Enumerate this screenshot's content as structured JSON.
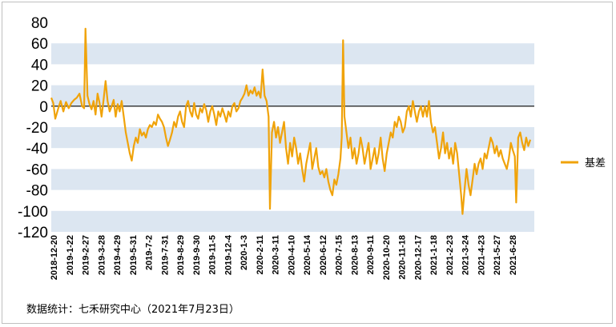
{
  "chart_data": {
    "type": "line",
    "title": "",
    "xlabel": "",
    "ylabel": "",
    "ylim": [
      -120,
      80
    ],
    "yticks": [
      80,
      60,
      40,
      20,
      0,
      -20,
      -40,
      -60,
      -80,
      -100,
      -120
    ],
    "xtick_labels": [
      "2018-12-20",
      "2019-1-22",
      "2019-2-27",
      "2019-3-28",
      "2019-4-29",
      "2019-5-31",
      "2019-7-2",
      "2019-7-31",
      "2019-8-29",
      "2019-9-30",
      "2019-11-5",
      "2019-12-4",
      "2020-1-3",
      "2020-2-11",
      "2020-3-11",
      "2020-4-10",
      "2020-5-14",
      "2020-6-12",
      "2020-7-15",
      "2020-8-13",
      "2020-9-11",
      "2020-10-20",
      "2020-11-18",
      "2020-12-17",
      "2021-1-18",
      "2021-2-23",
      "2021-3-24",
      "2021-4-23",
      "2021-5-27",
      "2021-6-28"
    ],
    "legend": {
      "position": "right"
    },
    "grid": "alternating horizontal bands",
    "series": [
      {
        "name": "基差",
        "color": "#f0a30a",
        "points": [
          [
            0,
            8
          ],
          [
            0.3,
            3
          ],
          [
            0.6,
            -12
          ],
          [
            1,
            -3
          ],
          [
            1.4,
            5
          ],
          [
            1.8,
            -5
          ],
          [
            2.2,
            4
          ],
          [
            2.6,
            -2
          ],
          [
            3,
            3
          ],
          [
            3.4,
            6
          ],
          [
            3.8,
            8
          ],
          [
            4.2,
            12
          ],
          [
            4.6,
            0
          ],
          [
            4.9,
            -2
          ],
          [
            5.1,
            74
          ],
          [
            5.4,
            10
          ],
          [
            5.7,
            2
          ],
          [
            6,
            -3
          ],
          [
            6.3,
            5
          ],
          [
            6.6,
            -8
          ],
          [
            6.9,
            12
          ],
          [
            7.2,
            3
          ],
          [
            7.5,
            -10
          ],
          [
            7.8,
            6
          ],
          [
            8.1,
            24
          ],
          [
            8.4,
            5
          ],
          [
            8.7,
            -5
          ],
          [
            9,
            0
          ],
          [
            9.3,
            6
          ],
          [
            9.6,
            -10
          ],
          [
            9.9,
            2
          ],
          [
            10.2,
            -5
          ],
          [
            10.5,
            5
          ],
          [
            10.8,
            -10
          ],
          [
            11.1,
            -25
          ],
          [
            11.4,
            -35
          ],
          [
            11.7,
            -45
          ],
          [
            12,
            -52
          ],
          [
            12.3,
            -38
          ],
          [
            12.6,
            -30
          ],
          [
            12.9,
            -35
          ],
          [
            13.2,
            -22
          ],
          [
            13.5,
            -28
          ],
          [
            13.8,
            -25
          ],
          [
            14.1,
            -30
          ],
          [
            14.4,
            -22
          ],
          [
            14.7,
            -18
          ],
          [
            15,
            -20
          ],
          [
            15.3,
            -15
          ],
          [
            15.6,
            -18
          ],
          [
            15.9,
            -8
          ],
          [
            16.2,
            -12
          ],
          [
            16.5,
            -15
          ],
          [
            16.8,
            -20
          ],
          [
            17.1,
            -30
          ],
          [
            17.4,
            -38
          ],
          [
            17.7,
            -32
          ],
          [
            18,
            -25
          ],
          [
            18.3,
            -15
          ],
          [
            18.6,
            -20
          ],
          [
            18.9,
            -10
          ],
          [
            19.2,
            -5
          ],
          [
            19.5,
            -15
          ],
          [
            19.8,
            -20
          ],
          [
            20.1,
            0
          ],
          [
            20.4,
            5
          ],
          [
            20.7,
            -5
          ],
          [
            21,
            -10
          ],
          [
            21.3,
            3
          ],
          [
            21.6,
            -8
          ],
          [
            21.9,
            -12
          ],
          [
            22.2,
            -2
          ],
          [
            22.5,
            -6
          ],
          [
            22.8,
            2
          ],
          [
            23.1,
            -4
          ],
          [
            23.4,
            -15
          ],
          [
            23.7,
            -5
          ],
          [
            24,
            0
          ],
          [
            24.3,
            -8
          ],
          [
            24.6,
            -18
          ],
          [
            24.9,
            -5
          ],
          [
            25.2,
            -10
          ],
          [
            25.5,
            -2
          ],
          [
            25.8,
            -8
          ],
          [
            26.1,
            -15
          ],
          [
            26.4,
            -5
          ],
          [
            26.7,
            -10
          ],
          [
            27,
            0
          ],
          [
            27.3,
            3
          ],
          [
            27.6,
            -5
          ],
          [
            27.9,
            -2
          ],
          [
            28.2,
            5
          ],
          [
            28.5,
            8
          ],
          [
            28.8,
            12
          ],
          [
            29.1,
            20
          ],
          [
            29.4,
            10
          ],
          [
            29.7,
            15
          ],
          [
            30,
            12
          ],
          [
            30.3,
            18
          ],
          [
            30.6,
            10
          ],
          [
            30.9,
            14
          ],
          [
            31.2,
            8
          ],
          [
            31.5,
            35
          ],
          [
            31.8,
            10
          ],
          [
            32.1,
            5
          ],
          [
            32.4,
            -10
          ],
          [
            32.6,
            -98
          ],
          [
            32.9,
            -25
          ],
          [
            33.2,
            -15
          ],
          [
            33.5,
            -30
          ],
          [
            33.8,
            -20
          ],
          [
            34.1,
            -35
          ],
          [
            34.4,
            -25
          ],
          [
            34.7,
            -15
          ],
          [
            35,
            -40
          ],
          [
            35.3,
            -55
          ],
          [
            35.6,
            -35
          ],
          [
            35.9,
            -48
          ],
          [
            36.2,
            -30
          ],
          [
            36.5,
            -40
          ],
          [
            36.8,
            -55
          ],
          [
            37.1,
            -45
          ],
          [
            37.4,
            -60
          ],
          [
            37.7,
            -72
          ],
          [
            38,
            -55
          ],
          [
            38.3,
            -45
          ],
          [
            38.6,
            -35
          ],
          [
            38.9,
            -60
          ],
          [
            39.2,
            -50
          ],
          [
            39.5,
            -40
          ],
          [
            39.8,
            -58
          ],
          [
            40.1,
            -65
          ],
          [
            40.4,
            -62
          ],
          [
            40.7,
            -68
          ],
          [
            41,
            -60
          ],
          [
            41.3,
            -72
          ],
          [
            41.6,
            -80
          ],
          [
            41.9,
            -85
          ],
          [
            42.2,
            -70
          ],
          [
            42.5,
            -75
          ],
          [
            42.8,
            -65
          ],
          [
            43.1,
            -50
          ],
          [
            43.3,
            -30
          ],
          [
            43.5,
            63
          ],
          [
            43.7,
            -10
          ],
          [
            44,
            -25
          ],
          [
            44.3,
            -40
          ],
          [
            44.6,
            -30
          ],
          [
            44.9,
            -50
          ],
          [
            45.2,
            -40
          ],
          [
            45.5,
            -55
          ],
          [
            45.8,
            -45
          ],
          [
            46.1,
            -30
          ],
          [
            46.4,
            -40
          ],
          [
            46.7,
            -55
          ],
          [
            47,
            -45
          ],
          [
            47.3,
            -35
          ],
          [
            47.6,
            -60
          ],
          [
            47.9,
            -50
          ],
          [
            48.2,
            -40
          ],
          [
            48.5,
            -55
          ],
          [
            48.8,
            -45
          ],
          [
            49.1,
            -30
          ],
          [
            49.4,
            -50
          ],
          [
            49.7,
            -62
          ],
          [
            50,
            -45
          ],
          [
            50.3,
            -35
          ],
          [
            50.6,
            -25
          ],
          [
            50.9,
            -30
          ],
          [
            51.2,
            -15
          ],
          [
            51.5,
            -20
          ],
          [
            51.8,
            -10
          ],
          [
            52.1,
            -15
          ],
          [
            52.4,
            -25
          ],
          [
            52.7,
            -20
          ],
          [
            53,
            -5
          ],
          [
            53.3,
            0
          ],
          [
            53.6,
            -10
          ],
          [
            53.9,
            5
          ],
          [
            54.2,
            -5
          ],
          [
            54.5,
            -15
          ],
          [
            54.8,
            -5
          ],
          [
            55.1,
            0
          ],
          [
            55.4,
            -10
          ],
          [
            55.7,
            0
          ],
          [
            56,
            -10
          ],
          [
            56.3,
            5
          ],
          [
            56.6,
            -15
          ],
          [
            56.9,
            -25
          ],
          [
            57.2,
            -20
          ],
          [
            57.5,
            -35
          ],
          [
            57.8,
            -50
          ],
          [
            58.1,
            -40
          ],
          [
            58.4,
            -25
          ],
          [
            58.7,
            -45
          ],
          [
            59,
            -35
          ],
          [
            59.3,
            -50
          ],
          [
            59.6,
            -40
          ],
          [
            59.9,
            -55
          ],
          [
            60.2,
            -35
          ],
          [
            60.5,
            -45
          ],
          [
            60.8,
            -65
          ],
          [
            61.1,
            -85
          ],
          [
            61.3,
            -103
          ],
          [
            61.6,
            -80
          ],
          [
            61.9,
            -60
          ],
          [
            62.2,
            -75
          ],
          [
            62.5,
            -85
          ],
          [
            62.8,
            -70
          ],
          [
            63.1,
            -55
          ],
          [
            63.4,
            -65
          ],
          [
            63.7,
            -55
          ],
          [
            64,
            -50
          ],
          [
            64.3,
            -60
          ],
          [
            64.6,
            -45
          ],
          [
            64.9,
            -50
          ],
          [
            65.2,
            -40
          ],
          [
            65.5,
            -30
          ],
          [
            65.8,
            -35
          ],
          [
            66.1,
            -45
          ],
          [
            66.4,
            -38
          ],
          [
            66.7,
            -48
          ],
          [
            67,
            -42
          ],
          [
            67.3,
            -50
          ],
          [
            67.6,
            -55
          ],
          [
            67.9,
            -60
          ],
          [
            68.2,
            -50
          ],
          [
            68.5,
            -35
          ],
          [
            68.8,
            -42
          ],
          [
            69.1,
            -48
          ],
          [
            69.3,
            -92
          ],
          [
            69.6,
            -30
          ],
          [
            69.9,
            -25
          ],
          [
            70.2,
            -35
          ],
          [
            70.5,
            -42
          ],
          [
            70.8,
            -30
          ],
          [
            71.1,
            -38
          ],
          [
            71.4,
            -32
          ]
        ]
      }
    ]
  },
  "source_note": "数据统计：七禾研究中心（2021年7月23日）"
}
